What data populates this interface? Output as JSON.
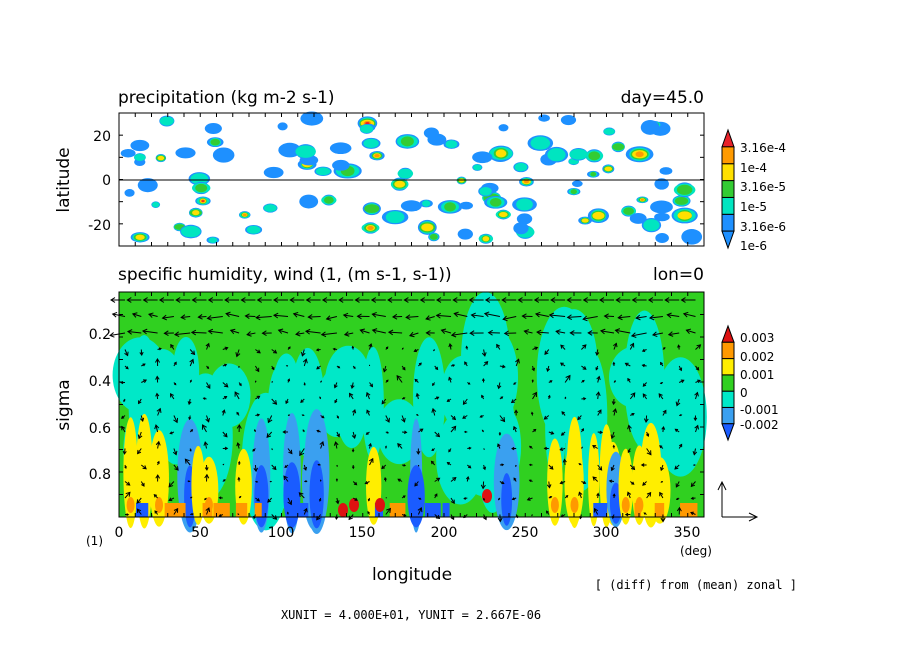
{
  "colors": {
    "frame": "#000000",
    "prec_levels": [
      "#ffffff",
      "#1e90ff",
      "#00e5c0",
      "#33cc33",
      "#ffe000",
      "#ff9a00",
      "#e8222a"
    ],
    "hum_levels": [
      "#1a5cff",
      "#3aa0f0",
      "#00e8c8",
      "#30d020",
      "#ffee00",
      "#ff9900",
      "#dd1111"
    ]
  },
  "chart_data": [
    {
      "type": "heatmap",
      "title": "precipitation (kg m-2 s-1)",
      "subtitle": "day=45.0",
      "ylabel": "latitude",
      "xlim": [
        0,
        360
      ],
      "ylim": [
        -30,
        30
      ],
      "yticks": [
        "20",
        "0",
        "-20"
      ],
      "legend_labels": [
        "3.16e-4",
        "1e-4",
        "3.16e-5",
        "1e-5",
        "3.16e-6",
        "1e-6"
      ],
      "legend_levels": [
        1e-06,
        3.16e-06,
        1e-05,
        3.16e-05,
        0.0001,
        0.000316
      ],
      "grid": false
    },
    {
      "type": "heatmap",
      "title": "specific humidity, wind (1, (m s-1, s-1))",
      "subtitle": "lon=0",
      "xlabel": "longitude",
      "ylabel": "sigma",
      "xlim": [
        0,
        360
      ],
      "ylim": [
        1,
        0.03
      ],
      "xticks": [
        "0",
        "50",
        "100",
        "150",
        "200",
        "250",
        "300",
        "350"
      ],
      "yticks": [
        "0.2",
        "0.4",
        "0.6",
        "0.8"
      ],
      "x_unit_label": "(deg)",
      "y_unit_label": "(1)",
      "legend_labels": [
        "0.003",
        "0.002",
        "0.001",
        "0",
        "-0.001",
        "-0.002"
      ],
      "legend_levels": [
        -0.002,
        -0.001,
        0,
        0.001,
        0.002,
        0.003
      ],
      "grid": false
    }
  ],
  "footer": {
    "note": "[ (diff) from (mean) zonal ]",
    "units": "XUNIT = 4.000E+01, YUNIT = 2.667E-06"
  }
}
